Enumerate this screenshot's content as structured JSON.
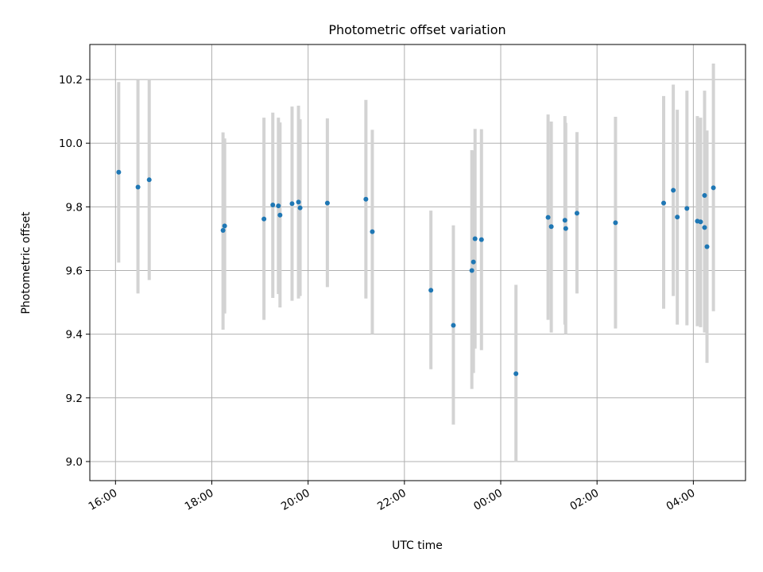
{
  "chart_data": {
    "type": "scatter",
    "title": "Photometric offset variation",
    "xlabel": "UTC time",
    "ylabel": "Photometric offset",
    "x_ticks": [
      "16:00",
      "18:00",
      "20:00",
      "22:00",
      "00:00",
      "02:00",
      "04:00"
    ],
    "y_ticks": [
      "9.0",
      "9.2",
      "9.4",
      "9.6",
      "9.8",
      "10.0",
      "10.2"
    ],
    "xlim": [
      "15:28",
      "05:05"
    ],
    "ylim": [
      8.94,
      10.31
    ],
    "grid": true,
    "marker_color": "#1f77b4",
    "errorbar_color": "#d3d3d3",
    "points": [
      {
        "x": "16:04",
        "y": 9.909,
        "low": 9.625,
        "high": 10.192
      },
      {
        "x": "16:28",
        "y": 9.862,
        "low": 9.528,
        "high": 10.198
      },
      {
        "x": "16:42",
        "y": 9.885,
        "low": 9.57,
        "high": 10.2
      },
      {
        "x": "18:14",
        "y": 9.726,
        "low": 9.414,
        "high": 10.034
      },
      {
        "x": "18:16",
        "y": 9.74,
        "low": 9.465,
        "high": 10.015
      },
      {
        "x": "19:05",
        "y": 9.762,
        "low": 9.445,
        "high": 10.08
      },
      {
        "x": "19:16",
        "y": 9.806,
        "low": 9.514,
        "high": 10.096
      },
      {
        "x": "19:23",
        "y": 9.803,
        "low": 9.526,
        "high": 10.08
      },
      {
        "x": "19:25",
        "y": 9.774,
        "low": 9.484,
        "high": 10.065
      },
      {
        "x": "19:40",
        "y": 9.81,
        "low": 9.505,
        "high": 10.115
      },
      {
        "x": "19:48",
        "y": 9.815,
        "low": 9.512,
        "high": 10.118
      },
      {
        "x": "19:50",
        "y": 9.797,
        "low": 9.52,
        "high": 10.075
      },
      {
        "x": "20:24",
        "y": 9.812,
        "low": 9.548,
        "high": 10.078
      },
      {
        "x": "21:12",
        "y": 9.824,
        "low": 9.512,
        "high": 10.136
      },
      {
        "x": "21:20",
        "y": 9.722,
        "low": 9.4,
        "high": 10.042
      },
      {
        "x": "22:33",
        "y": 9.538,
        "low": 9.29,
        "high": 9.788
      },
      {
        "x": "23:01",
        "y": 9.428,
        "low": 9.116,
        "high": 9.742
      },
      {
        "x": "23:24",
        "y": 9.6,
        "low": 9.228,
        "high": 9.978
      },
      {
        "x": "23:26",
        "y": 9.627,
        "low": 9.278,
        "high": 9.976
      },
      {
        "x": "23:28",
        "y": 9.7,
        "low": 9.355,
        "high": 10.045
      },
      {
        "x": "23:36",
        "y": 9.697,
        "low": 9.35,
        "high": 10.044
      },
      {
        "x": "00:19",
        "y": 9.276,
        "low": 8.998,
        "high": 9.555
      },
      {
        "x": "00:59",
        "y": 9.767,
        "low": 9.445,
        "high": 10.09
      },
      {
        "x": "01:03",
        "y": 9.738,
        "low": 9.405,
        "high": 10.068
      },
      {
        "x": "01:20",
        "y": 9.758,
        "low": 9.43,
        "high": 10.085
      },
      {
        "x": "01:21",
        "y": 9.732,
        "low": 9.4,
        "high": 10.064
      },
      {
        "x": "01:35",
        "y": 9.78,
        "low": 9.528,
        "high": 10.035
      },
      {
        "x": "02:23",
        "y": 9.75,
        "low": 9.418,
        "high": 10.083
      },
      {
        "x": "03:23",
        "y": 9.812,
        "low": 9.48,
        "high": 10.148
      },
      {
        "x": "03:35",
        "y": 9.852,
        "low": 9.52,
        "high": 10.184
      },
      {
        "x": "03:40",
        "y": 9.768,
        "low": 9.43,
        "high": 10.105
      },
      {
        "x": "03:52",
        "y": 9.795,
        "low": 9.428,
        "high": 10.165
      },
      {
        "x": "04:05",
        "y": 9.755,
        "low": 9.425,
        "high": 10.085
      },
      {
        "x": "04:09",
        "y": 9.753,
        "low": 9.422,
        "high": 10.08
      },
      {
        "x": "04:14",
        "y": 9.836,
        "low": 9.505,
        "high": 10.165
      },
      {
        "x": "04:14",
        "y": 9.735,
        "low": 9.405,
        "high": 10.065
      },
      {
        "x": "04:17",
        "y": 9.675,
        "low": 9.31,
        "high": 10.04
      },
      {
        "x": "04:25",
        "y": 9.86,
        "low": 9.472,
        "high": 10.25
      }
    ]
  }
}
